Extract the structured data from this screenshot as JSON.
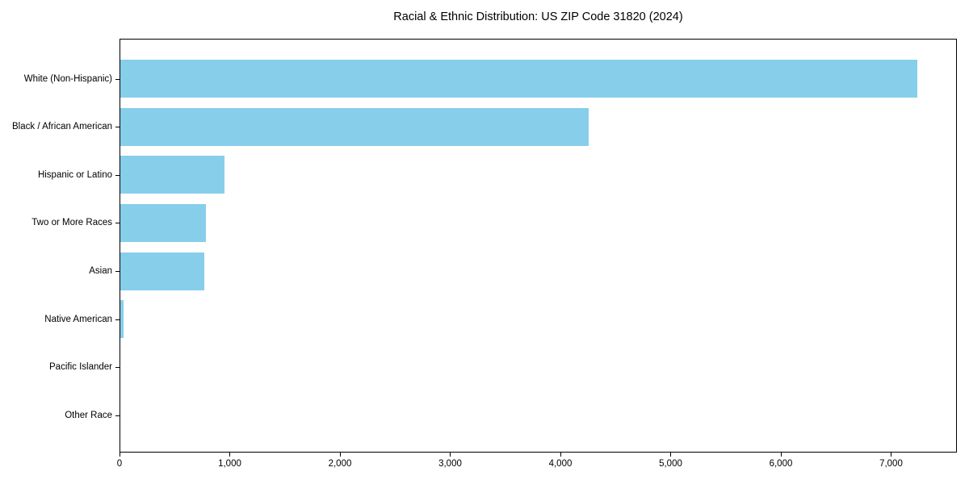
{
  "chart_data": {
    "type": "bar",
    "orientation": "horizontal",
    "title": "Racial & Ethnic Distribution: US ZIP Code 31820 (2024)",
    "categories": [
      "White (Non-Hispanic)",
      "Black / African American",
      "Hispanic or Latino",
      "Two or More Races",
      "Asian",
      "Native American",
      "Pacific Islander",
      "Other Race"
    ],
    "values": [
      7230,
      4250,
      945,
      775,
      765,
      30,
      0,
      0
    ],
    "xlabel": "",
    "ylabel": "",
    "xlim": [
      0,
      7590
    ],
    "xticks": [
      0,
      1000,
      2000,
      3000,
      4000,
      5000,
      6000,
      7000
    ],
    "xtick_labels": [
      "0",
      "1,000",
      "2,000",
      "3,000",
      "4,000",
      "5,000",
      "6,000",
      "7,000"
    ],
    "bar_color": "#87CEEB",
    "axis_color": "#000000",
    "background_color": "#ffffff",
    "grid": false,
    "legend": null
  }
}
